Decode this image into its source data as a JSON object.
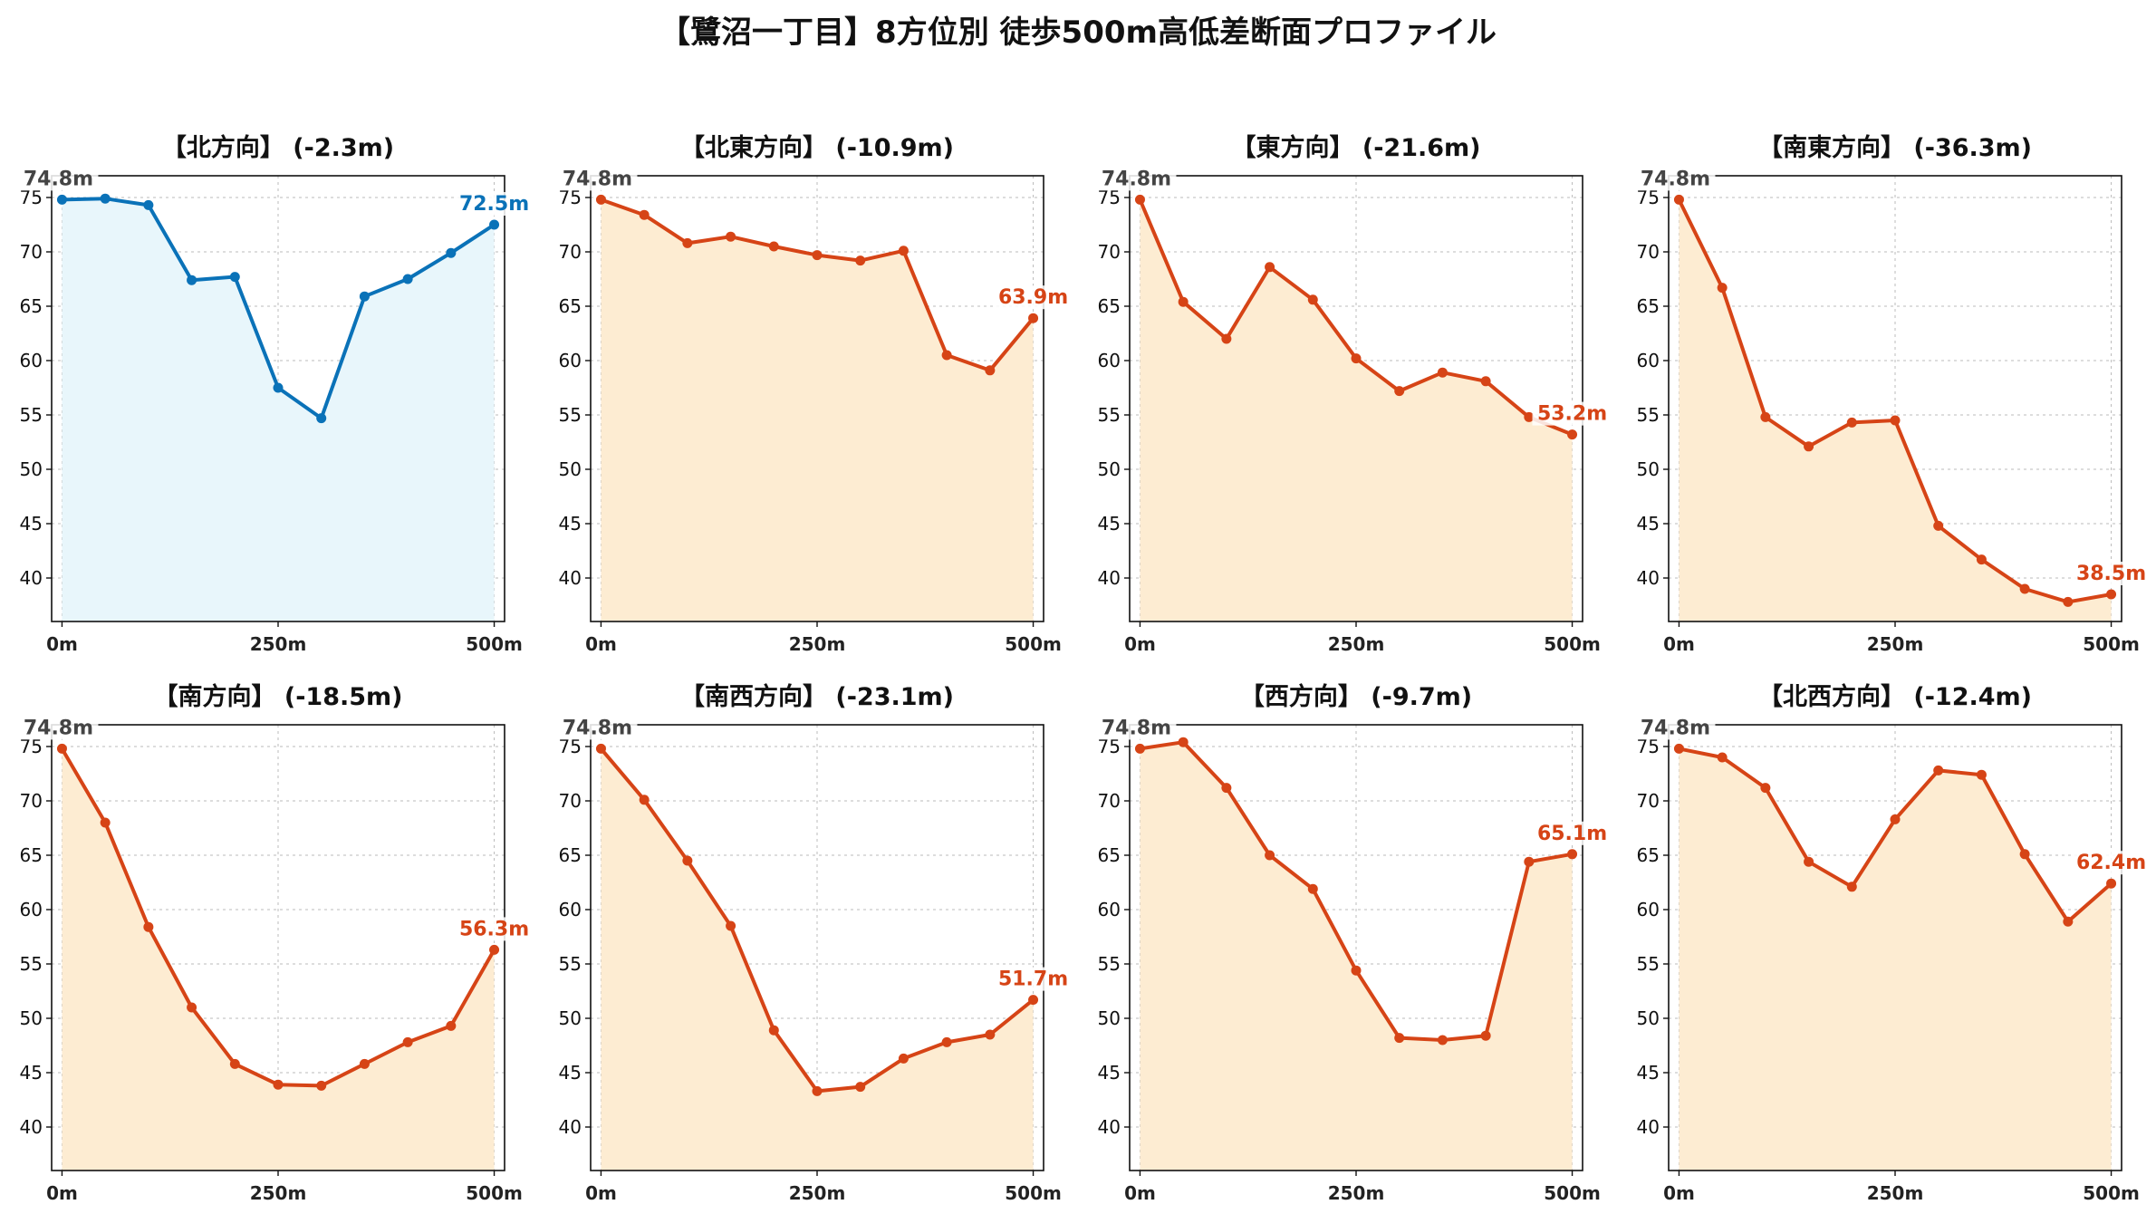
{
  "title": "【鷺沼一丁目】8方位別 徒歩500m高低差断面プロファイル",
  "colors": {
    "north_line": "#0a72b8",
    "north_fill": "#e8f6fb",
    "other_line": "#d64416",
    "other_fill": "#fdecd2",
    "start_label": "#444444",
    "grid": "#bbbbbb"
  },
  "chart_data": [
    {
      "type": "area",
      "title": "【北方向】 (-2.3m)",
      "x": [
        0,
        50,
        100,
        150,
        200,
        250,
        300,
        350,
        400,
        450,
        500
      ],
      "values": [
        74.8,
        74.9,
        74.3,
        67.4,
        67.7,
        57.5,
        54.7,
        65.9,
        67.5,
        69.9,
        72.5
      ],
      "start_label": "74.8m",
      "end_label": "72.5m",
      "line_color": "#0a72b8",
      "fill_color": "#e8f6fb",
      "xticks": [
        0,
        250,
        500
      ],
      "xtick_labels": [
        "0m",
        "250m",
        "500m"
      ],
      "yticks": [
        40,
        45,
        50,
        55,
        60,
        65,
        70,
        75
      ],
      "ylim": [
        36,
        77
      ],
      "xlim": [
        -12,
        512
      ],
      "grid": true
    },
    {
      "type": "area",
      "title": "【北東方向】 (-10.9m)",
      "x": [
        0,
        50,
        100,
        150,
        200,
        250,
        300,
        350,
        400,
        450,
        500
      ],
      "values": [
        74.8,
        73.4,
        70.8,
        71.4,
        70.5,
        69.7,
        69.2,
        70.1,
        60.5,
        59.1,
        63.9
      ],
      "start_label": "74.8m",
      "end_label": "63.9m",
      "line_color": "#d64416",
      "fill_color": "#fdecd2",
      "xticks": [
        0,
        250,
        500
      ],
      "xtick_labels": [
        "0m",
        "250m",
        "500m"
      ],
      "yticks": [
        40,
        45,
        50,
        55,
        60,
        65,
        70,
        75
      ],
      "ylim": [
        36,
        77
      ],
      "xlim": [
        -12,
        512
      ],
      "grid": true
    },
    {
      "type": "area",
      "title": "【東方向】 (-21.6m)",
      "x": [
        0,
        50,
        100,
        150,
        200,
        250,
        300,
        350,
        400,
        450,
        500
      ],
      "values": [
        74.8,
        65.4,
        62.0,
        68.6,
        65.6,
        60.2,
        57.2,
        58.9,
        58.1,
        54.8,
        53.2
      ],
      "start_label": "74.8m",
      "end_label": "53.2m",
      "line_color": "#d64416",
      "fill_color": "#fdecd2",
      "xticks": [
        0,
        250,
        500
      ],
      "xtick_labels": [
        "0m",
        "250m",
        "500m"
      ],
      "yticks": [
        40,
        45,
        50,
        55,
        60,
        65,
        70,
        75
      ],
      "ylim": [
        36,
        77
      ],
      "xlim": [
        -12,
        512
      ],
      "grid": true
    },
    {
      "type": "area",
      "title": "【南東方向】 (-36.3m)",
      "x": [
        0,
        50,
        100,
        150,
        200,
        250,
        300,
        350,
        400,
        450,
        500
      ],
      "values": [
        74.8,
        66.7,
        54.8,
        52.1,
        54.3,
        54.5,
        44.8,
        41.7,
        39.0,
        37.8,
        38.5
      ],
      "start_label": "74.8m",
      "end_label": "38.5m",
      "line_color": "#d64416",
      "fill_color": "#fdecd2",
      "xticks": [
        0,
        250,
        500
      ],
      "xtick_labels": [
        "0m",
        "250m",
        "500m"
      ],
      "yticks": [
        40,
        45,
        50,
        55,
        60,
        65,
        70,
        75
      ],
      "ylim": [
        36,
        77
      ],
      "xlim": [
        -12,
        512
      ],
      "grid": true
    },
    {
      "type": "area",
      "title": "【南方向】 (-18.5m)",
      "x": [
        0,
        50,
        100,
        150,
        200,
        250,
        300,
        350,
        400,
        450,
        500
      ],
      "values": [
        74.8,
        68.0,
        58.4,
        51.0,
        45.8,
        43.9,
        43.8,
        45.8,
        47.8,
        49.3,
        56.3
      ],
      "start_label": "74.8m",
      "end_label": "56.3m",
      "line_color": "#d64416",
      "fill_color": "#fdecd2",
      "xticks": [
        0,
        250,
        500
      ],
      "xtick_labels": [
        "0m",
        "250m",
        "500m"
      ],
      "yticks": [
        40,
        45,
        50,
        55,
        60,
        65,
        70,
        75
      ],
      "ylim": [
        36,
        77
      ],
      "xlim": [
        -12,
        512
      ],
      "grid": true
    },
    {
      "type": "area",
      "title": "【南西方向】 (-23.1m)",
      "x": [
        0,
        50,
        100,
        150,
        200,
        250,
        300,
        350,
        400,
        450,
        500
      ],
      "values": [
        74.8,
        70.1,
        64.5,
        58.5,
        48.9,
        43.3,
        43.7,
        46.3,
        47.8,
        48.5,
        51.7
      ],
      "start_label": "74.8m",
      "end_label": "51.7m",
      "line_color": "#d64416",
      "fill_color": "#fdecd2",
      "xticks": [
        0,
        250,
        500
      ],
      "xtick_labels": [
        "0m",
        "250m",
        "500m"
      ],
      "yticks": [
        40,
        45,
        50,
        55,
        60,
        65,
        70,
        75
      ],
      "ylim": [
        36,
        77
      ],
      "xlim": [
        -12,
        512
      ],
      "grid": true
    },
    {
      "type": "area",
      "title": "【西方向】 (-9.7m)",
      "x": [
        0,
        50,
        100,
        150,
        200,
        250,
        300,
        350,
        400,
        450,
        500
      ],
      "values": [
        74.8,
        75.4,
        71.2,
        65.0,
        61.9,
        54.4,
        48.2,
        48.0,
        48.4,
        64.4,
        65.1
      ],
      "start_label": "74.8m",
      "end_label": "65.1m",
      "line_color": "#d64416",
      "fill_color": "#fdecd2",
      "xticks": [
        0,
        250,
        500
      ],
      "xtick_labels": [
        "0m",
        "250m",
        "500m"
      ],
      "yticks": [
        40,
        45,
        50,
        55,
        60,
        65,
        70,
        75
      ],
      "ylim": [
        36,
        77
      ],
      "xlim": [
        -12,
        512
      ],
      "grid": true
    },
    {
      "type": "area",
      "title": "【北西方向】 (-12.4m)",
      "x": [
        0,
        50,
        100,
        150,
        200,
        250,
        300,
        350,
        400,
        450,
        500
      ],
      "values": [
        74.8,
        74.0,
        71.2,
        64.4,
        62.1,
        68.3,
        72.8,
        72.4,
        65.1,
        58.9,
        62.4
      ],
      "start_label": "74.8m",
      "end_label": "62.4m",
      "line_color": "#d64416",
      "fill_color": "#fdecd2",
      "xticks": [
        0,
        250,
        500
      ],
      "xtick_labels": [
        "0m",
        "250m",
        "500m"
      ],
      "yticks": [
        40,
        45,
        50,
        55,
        60,
        65,
        70,
        75
      ],
      "ylim": [
        36,
        77
      ],
      "xlim": [
        -12,
        512
      ],
      "grid": true
    }
  ]
}
